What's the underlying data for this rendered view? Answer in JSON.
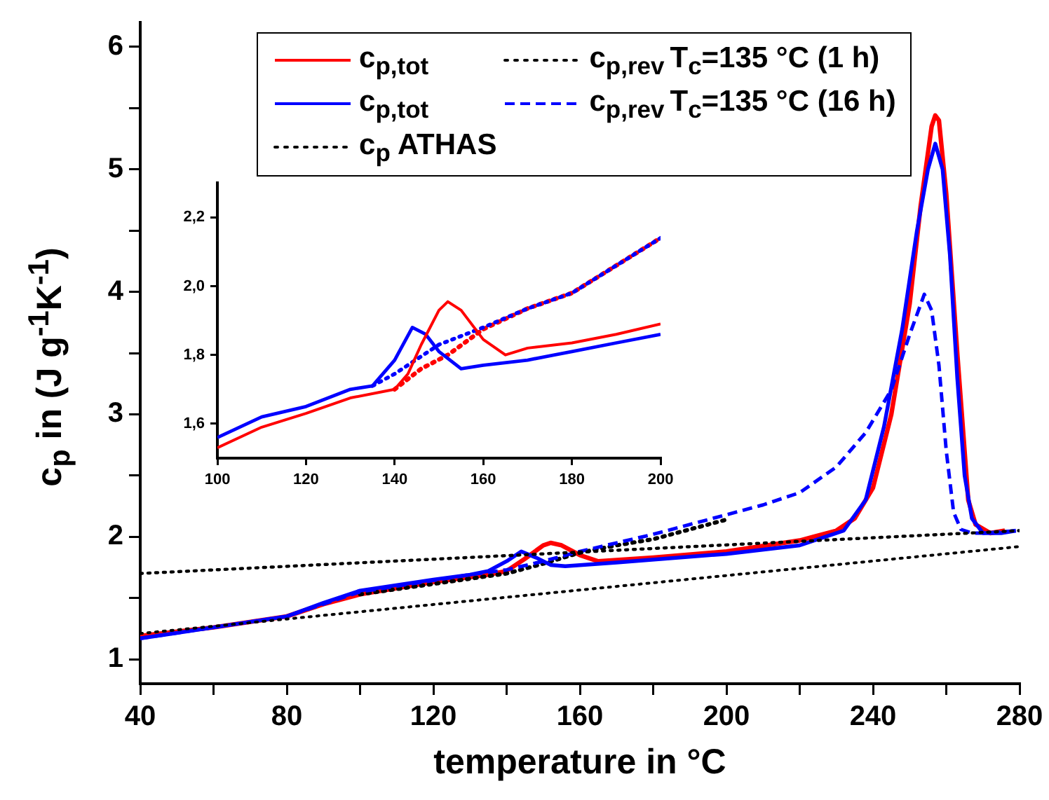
{
  "chart_data": [
    {
      "type": "line",
      "xlabel": "temperature in °C",
      "ylabel": "c$_{p}$ in (J g$^{-1}$K$^{-1}$)",
      "xlim": [
        40,
        280
      ],
      "ylim": [
        0.8,
        6.2
      ],
      "xticks": [
        40,
        {
          "value": 60,
          "label": null
        },
        80,
        {
          "value": 100,
          "label": null
        },
        120,
        {
          "value": 140,
          "label": null
        },
        160,
        {
          "value": 180,
          "label": null
        },
        200,
        {
          "value": 220,
          "label": null
        },
        240,
        {
          "value": 260,
          "label": null
        },
        280
      ],
      "yticks": [
        1,
        {
          "value": 1.5,
          "label": null
        },
        2,
        {
          "value": 2.5,
          "label": null
        },
        3,
        {
          "value": 3.5,
          "label": null
        },
        4,
        {
          "value": 4.5,
          "label": null
        },
        5,
        {
          "value": 5.5,
          "label": null
        },
        6
      ],
      "legend": "top",
      "annotations": [
        "T$_{c}$=135 °C (1 h)",
        "T$_{c}$=135 °C (16 h)"
      ],
      "series": [
        {
          "name": "c$_{p,tot}$",
          "color": "#ff0000",
          "line_style": "solid",
          "x": [
            40,
            60,
            80,
            90,
            100,
            120,
            135,
            140,
            145,
            150,
            152,
            155,
            160,
            165,
            180,
            200,
            220,
            230,
            235,
            240,
            245,
            250,
            253,
            256,
            257,
            258,
            260,
            263,
            266,
            268,
            272,
            276
          ],
          "values": [
            1.19,
            1.26,
            1.35,
            1.45,
            1.53,
            1.63,
            1.69,
            1.72,
            1.82,
            1.93,
            1.95,
            1.93,
            1.85,
            1.8,
            1.83,
            1.88,
            1.97,
            2.05,
            2.15,
            2.4,
            3.0,
            3.9,
            4.7,
            5.35,
            5.44,
            5.4,
            4.8,
            3.5,
            2.3,
            2.1,
            2.03,
            2.05
          ]
        },
        {
          "name": "c$_{p,rev}$",
          "color": "#000000",
          "line_style": "dotted",
          "x": [
            100,
            140,
            150,
            160,
            170,
            180,
            190,
            200
          ],
          "values": [
            1.53,
            1.7,
            1.78,
            1.87,
            1.93,
            1.98,
            2.06,
            2.14
          ]
        },
        {
          "name": "c$_{p,tot}$",
          "color": "#0000ff",
          "line_style": "solid",
          "x": [
            40,
            60,
            80,
            90,
            100,
            120,
            130,
            135,
            140,
            144,
            148,
            152,
            156,
            170,
            200,
            220,
            232,
            238,
            243,
            248,
            252,
            255,
            257,
            259,
            261,
            263,
            265,
            267,
            270,
            275,
            279
          ],
          "values": [
            1.17,
            1.26,
            1.35,
            1.46,
            1.56,
            1.65,
            1.69,
            1.72,
            1.8,
            1.88,
            1.83,
            1.77,
            1.76,
            1.79,
            1.86,
            1.93,
            2.05,
            2.3,
            2.9,
            3.7,
            4.5,
            5.0,
            5.21,
            5.0,
            4.3,
            3.3,
            2.5,
            2.15,
            2.03,
            2.03,
            2.05
          ]
        },
        {
          "name": "c$_{p,rev}$",
          "color": "#0000ff",
          "line_style": "dashed",
          "x": [
            40,
            80,
            100,
            130,
            140,
            150,
            160,
            180,
            200,
            210,
            220,
            230,
            238,
            245,
            250,
            254,
            256,
            258,
            260,
            262,
            264,
            267,
            270,
            280
          ],
          "values": [
            1.17,
            1.35,
            1.55,
            1.69,
            1.73,
            1.8,
            1.88,
            2.02,
            2.18,
            2.26,
            2.36,
            2.57,
            2.85,
            3.2,
            3.65,
            3.98,
            3.85,
            3.4,
            2.7,
            2.2,
            2.06,
            2.03,
            2.03,
            2.05
          ]
        },
        {
          "name": "c$_{p}$ ATHAS",
          "color": "#000000",
          "line_style": "dotted",
          "x": [
            40,
            280
          ],
          "values": [
            1.7,
            2.05
          ]
        },
        {
          "color": "#000000",
          "line_style": "dotted",
          "x": [
            40,
            280
          ],
          "values": [
            1.21,
            1.92
          ]
        }
      ]
    },
    {
      "type": "line",
      "xlim": [
        100,
        200
      ],
      "ylim": [
        1.5,
        2.3
      ],
      "xticks": [
        100,
        120,
        140,
        160,
        180,
        200
      ],
      "yticks": [
        {
          "value": 1.6,
          "label": "1,6"
        },
        {
          "value": 1.8,
          "label": "1,8"
        },
        {
          "value": 2.0,
          "label": "2,0"
        },
        {
          "value": 2.2,
          "label": "2,2"
        }
      ],
      "series": [
        {
          "color": "#ff0000",
          "line_style": "dotted",
          "x": [
            140,
            146,
            152,
            160,
            170,
            180,
            190,
            200
          ],
          "values": [
            1.7,
            1.76,
            1.8,
            1.875,
            1.935,
            1.98,
            2.06,
            2.14
          ]
        },
        {
          "color": "#0000ff",
          "line_style": "dotted",
          "x": [
            135,
            140,
            150,
            160,
            170,
            180,
            190,
            200
          ],
          "values": [
            1.71,
            1.745,
            1.83,
            1.88,
            1.935,
            1.98,
            2.06,
            2.14
          ]
        },
        {
          "color": "#0000ff",
          "line_style": "solid",
          "x": [
            100,
            110,
            120,
            130,
            135,
            140,
            144,
            147,
            150,
            155,
            160,
            170,
            180,
            190,
            200
          ],
          "values": [
            1.56,
            1.62,
            1.65,
            1.7,
            1.71,
            1.785,
            1.88,
            1.86,
            1.81,
            1.76,
            1.77,
            1.785,
            1.81,
            1.835,
            1.86
          ]
        },
        {
          "color": "#ff0000",
          "line_style": "solid",
          "x": [
            100,
            110,
            120,
            130,
            140,
            143,
            146,
            150,
            152,
            155,
            160,
            165,
            170,
            180,
            190,
            200
          ],
          "values": [
            1.53,
            1.59,
            1.63,
            1.675,
            1.7,
            1.745,
            1.83,
            1.93,
            1.955,
            1.93,
            1.845,
            1.8,
            1.82,
            1.835,
            1.86,
            1.89
          ]
        }
      ]
    }
  ]
}
